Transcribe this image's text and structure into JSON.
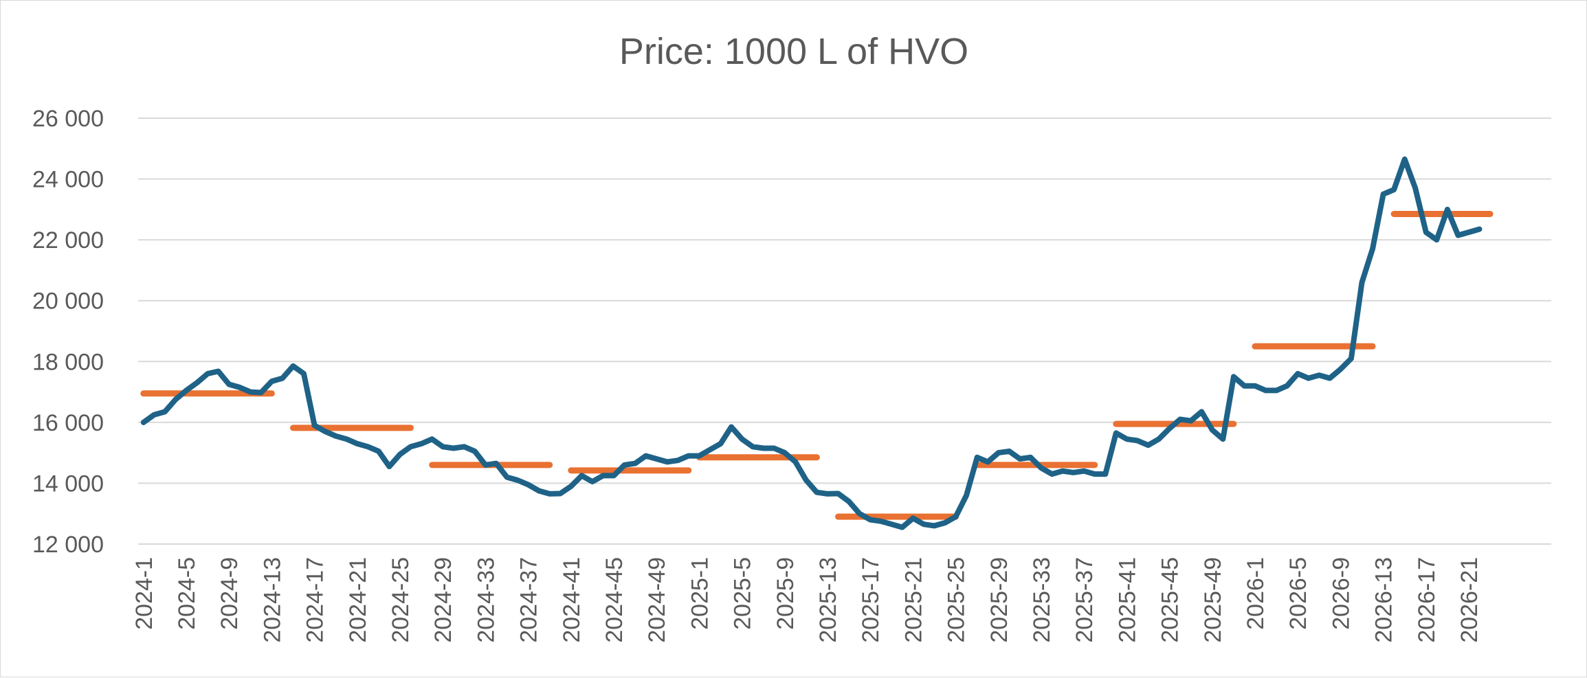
{
  "chart_data": {
    "type": "line",
    "title": "Price: 1000 L of HVO",
    "xlabel": "",
    "ylabel": "",
    "ylim": [
      12000,
      26000
    ],
    "yticks": [
      12000,
      14000,
      16000,
      18000,
      20000,
      22000,
      24000,
      26000
    ],
    "ytick_labels": [
      "12 000",
      "14 000",
      "16 000",
      "18 000",
      "20 000",
      "22 000",
      "24 000",
      "26 000"
    ],
    "grid": true,
    "legend": "none",
    "colors": {
      "weekly": "#1f6287",
      "average": "#e97132",
      "grid": "#d9d9d9",
      "text": "#595959"
    },
    "x_tick_labels": [
      "2024-1",
      "2024-5",
      "2024-9",
      "2024-13",
      "2024-17",
      "2024-21",
      "2024-25",
      "2024-29",
      "2024-33",
      "2024-37",
      "2024-41",
      "2024-45",
      "2024-49",
      "2025-1",
      "2025-5",
      "2025-9",
      "2025-13",
      "2025-17",
      "2025-21",
      "2025-25",
      "2025-29",
      "2025-33",
      "2025-37",
      "2025-41",
      "2025-45",
      "2025-49",
      "2026-1",
      "2026-5",
      "2026-9",
      "2026-13",
      "2026-17",
      "2026-21"
    ],
    "series": [
      {
        "kind": "line",
        "x_start": "2024-1",
        "values": [
          16000,
          16250,
          16350,
          16750,
          17050,
          17300,
          17600,
          17680,
          17250,
          17150,
          17000,
          16980,
          17350,
          17450,
          17850,
          17600,
          15900,
          15700,
          15550,
          15450,
          15300,
          15200,
          15050,
          14550,
          14950,
          15200,
          15300,
          15450,
          15200,
          15150,
          15200,
          15050,
          14600,
          14650,
          14200,
          14100,
          13950,
          13750,
          13650,
          13660,
          13900,
          14250,
          14050,
          14250,
          14250,
          14600,
          14650,
          14900,
          14800,
          14700,
          14750,
          14900,
          14900,
          15100,
          15300,
          15850,
          15450,
          15200,
          15150,
          15150,
          15000,
          14700,
          14100,
          13700,
          13650,
          13660,
          13400,
          13000,
          12800,
          12750,
          12650,
          12550,
          12850,
          12650,
          12600,
          12700,
          12900,
          13600,
          14850,
          14700,
          15000,
          15050,
          14800,
          14850,
          14500,
          14300,
          14400,
          14350,
          14400,
          14300,
          14300,
          15650,
          15450,
          15400,
          15250,
          15450,
          15800,
          16100,
          16050,
          16350,
          15750,
          15450,
          17500,
          17200,
          17200,
          17050,
          17050,
          17200,
          17600,
          17450,
          17550,
          17450,
          17750,
          18100,
          20600,
          21700,
          23500,
          23650,
          24650,
          23700,
          22250,
          22000,
          23000,
          22150,
          22250,
          22350
        ]
      },
      {
        "kind": "segments",
        "segments": [
          {
            "start": "2024-1",
            "end": "2024-13",
            "value": 16950
          },
          {
            "start": "2024-15",
            "end": "2024-26",
            "value": 15820
          },
          {
            "start": "2024-28",
            "end": "2024-39",
            "value": 14600
          },
          {
            "start": "2024-41",
            "end": "2024-52",
            "value": 14420
          },
          {
            "start": "2025-1",
            "end": "2025-12",
            "value": 14850
          },
          {
            "start": "2025-14",
            "end": "2025-25",
            "value": 12900
          },
          {
            "start": "2025-27",
            "end": "2025-38",
            "value": 14600
          },
          {
            "start": "2025-40",
            "end": "2025-51",
            "value": 15950
          },
          {
            "start": "2026-1",
            "end": "2026-12",
            "value": 18500
          },
          {
            "start": "2026-14",
            "end": "2026-23",
            "value": 22850
          }
        ]
      }
    ]
  }
}
